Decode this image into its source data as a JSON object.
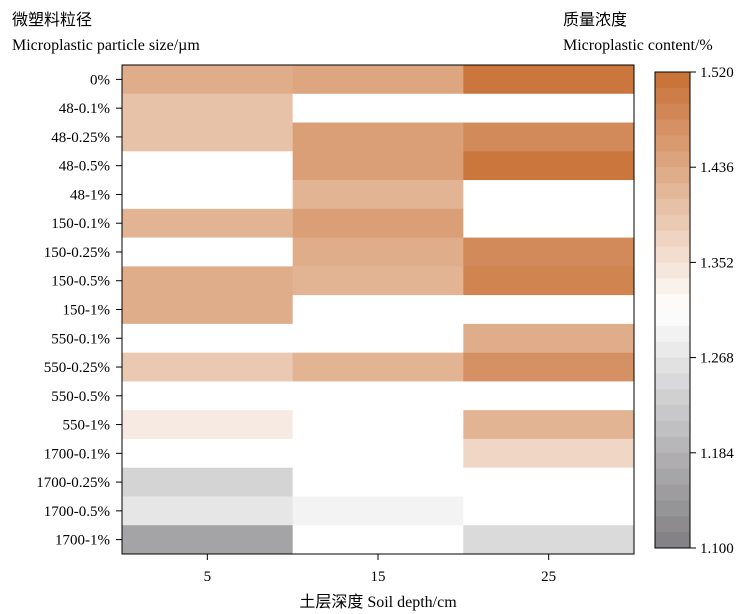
{
  "chart_data": {
    "type": "heatmap",
    "ylabel_cn": "微塑料粒径",
    "ylabel_en": "Microplastic particle size/µm",
    "colorbar_label_cn": "质量浓度",
    "colorbar_label_en": "Microplastic content/%",
    "xlabel": "土层深度 Soil depth/cm",
    "x_categories": [
      "5",
      "15",
      "25"
    ],
    "y_categories": [
      "0%",
      "48-0.1%",
      "48-0.25%",
      "48-0.5%",
      "48-1%",
      "150-0.1%",
      "150-0.25%",
      "150-0.5%",
      "150-1%",
      "550-0.1%",
      "550-0.25%",
      "550-0.5%",
      "550-1%",
      "1700-0.1%",
      "1700-0.25%",
      "1700-0.5%",
      "1700-1%"
    ],
    "values": [
      [
        1.43,
        1.44,
        1.51
      ],
      [
        1.4,
        1.31,
        1.31
      ],
      [
        1.4,
        1.45,
        1.48
      ],
      [
        1.31,
        1.45,
        1.51
      ],
      [
        1.31,
        1.42,
        1.31
      ],
      [
        1.42,
        1.45,
        1.31
      ],
      [
        1.31,
        1.43,
        1.48
      ],
      [
        1.43,
        1.42,
        1.49
      ],
      [
        1.43,
        1.31,
        1.31
      ],
      [
        1.31,
        1.31,
        1.43
      ],
      [
        1.39,
        1.42,
        1.47
      ],
      [
        1.31,
        1.31,
        1.31
      ],
      [
        1.34,
        1.31,
        1.42
      ],
      [
        1.31,
        1.31,
        1.37
      ],
      [
        1.24,
        1.31,
        1.31
      ],
      [
        1.27,
        1.29,
        1.31
      ],
      [
        1.16,
        1.31,
        1.25
      ]
    ],
    "colorbar": {
      "min": 1.1,
      "max": 1.52,
      "ticks": [
        "1.100",
        "1.184",
        "1.268",
        "1.352",
        "1.436",
        "1.520"
      ]
    },
    "colors": {
      "low": "#807e82",
      "mid": "#ffffff",
      "high": "#c86f33",
      "mid_value": 1.31
    }
  }
}
